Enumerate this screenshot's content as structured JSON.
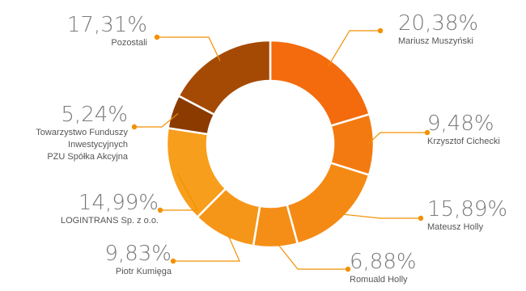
{
  "chart_data": {
    "type": "pie",
    "variant": "donut",
    "start": "top",
    "direction": "clockwise",
    "slices": [
      {
        "name": "Mariusz Muszyński",
        "value": 20.38,
        "label": "20,38%",
        "color": "#f36b0c"
      },
      {
        "name": "Krzysztof Cichecki",
        "value": 9.48,
        "label": "9,48%",
        "color": "#f37a10"
      },
      {
        "name": "Mateusz Holly",
        "value": 15.89,
        "label": "15,89%",
        "color": "#f48a14"
      },
      {
        "name": "Romuald Holly",
        "value": 6.88,
        "label": "6,88%",
        "color": "#f58e16"
      },
      {
        "name": "Piotr Kumięga",
        "value": 9.83,
        "label": "9,83%",
        "color": "#f69619"
      },
      {
        "name": "LOGINTRANS Sp. z o.o.",
        "value": 14.99,
        "label": "14,99%",
        "color": "#f79e1c"
      },
      {
        "name": [
          "Towarzystwo Funduszy",
          "Inwestycyjnych",
          "PZU Spółka Akcyjna"
        ],
        "value": 5.24,
        "label": "5,24%",
        "color": "#8b3a00"
      },
      {
        "name": "Pozostali",
        "value": 17.31,
        "label": "17,31%",
        "color": "#a54a04"
      }
    ],
    "leader_color": "#f29100"
  }
}
